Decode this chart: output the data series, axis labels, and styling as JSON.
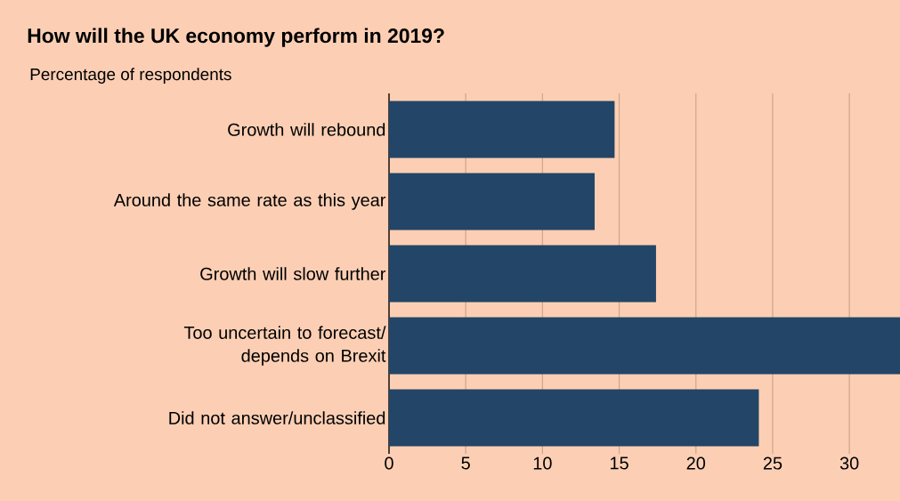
{
  "chart_data": {
    "type": "bar",
    "orientation": "horizontal",
    "title": "How will the UK economy perform in 2019?",
    "subtitle": "Percentage of respondents",
    "categories": [
      "Growth will rebound",
      "Around the same rate as this year",
      "Growth will slow further",
      "Too uncertain to forecast/ depends on Brexit",
      "Did not answer/unclassified"
    ],
    "values": [
      14.7,
      13.4,
      17.4,
      33.3,
      24.1
    ],
    "color": "#234567",
    "xlim": [
      0,
      33.3
    ],
    "xticks": [
      0,
      5,
      10,
      15,
      20,
      25,
      30
    ],
    "grid": "x"
  }
}
